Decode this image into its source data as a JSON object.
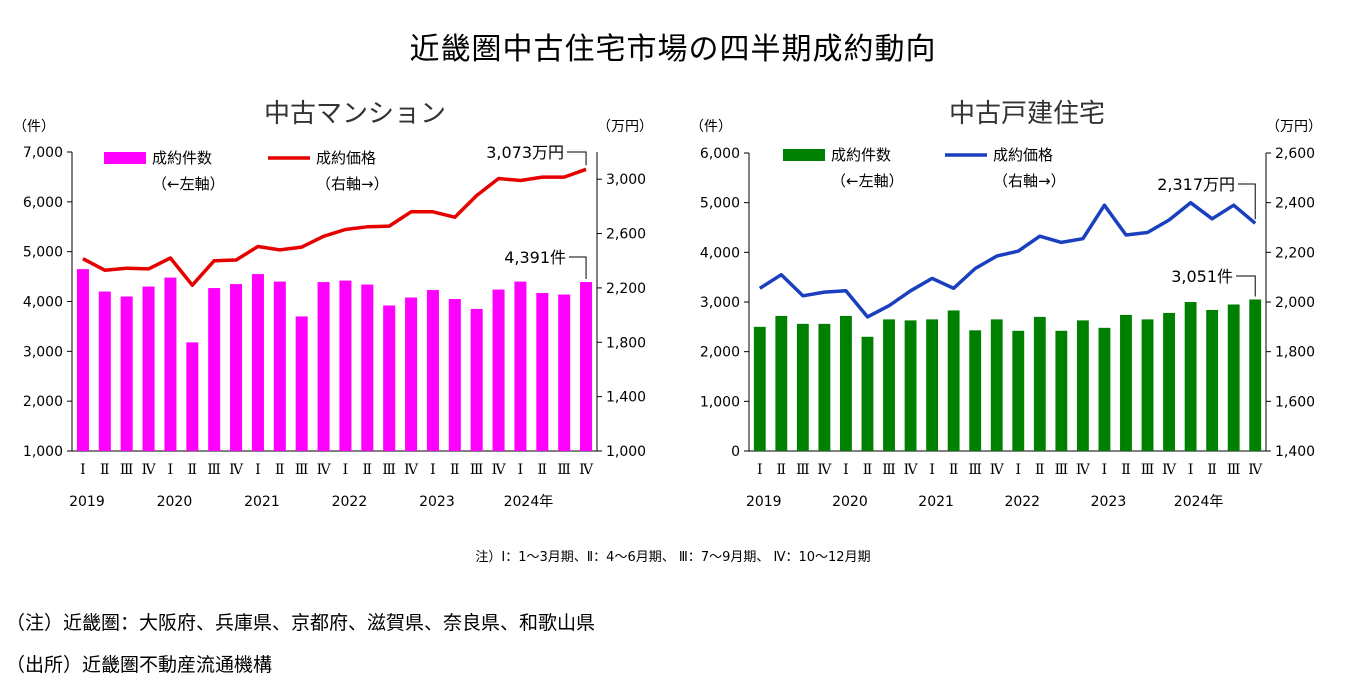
{
  "title": "近畿圏中古住宅市場の四半期成約動向",
  "quarter_note": "注）Ⅰ：1～3月期、Ⅱ：4～6月期、 Ⅲ：7～9月期、 Ⅳ：10～12月期",
  "footnote_area": "（注）近畿圏：大阪府、兵庫県、京都府、滋賀県、奈良県、和歌山県",
  "source": "（出所）近畿圏不動産流通機構",
  "chart_data": [
    {
      "type": "bar+line",
      "title": "中古マンション",
      "left_unit": "（件）",
      "right_unit": "（万円）",
      "left_ylim": [
        1000,
        7000
      ],
      "left_ticks": [
        "1,000",
        "2,000",
        "3,000",
        "4,000",
        "5,000",
        "6,000",
        "7,000"
      ],
      "right_ylim": [
        1000,
        3200
      ],
      "right_ticks": [
        "1,000",
        "1,400",
        "1,800",
        "2,200",
        "2,600",
        "3,000"
      ],
      "right_tick_values": [
        1000,
        1400,
        1800,
        2200,
        2600,
        3000
      ],
      "quarters": [
        "Ⅰ",
        "Ⅱ",
        "Ⅲ",
        "Ⅳ",
        "Ⅰ",
        "Ⅱ",
        "Ⅲ",
        "Ⅳ",
        "Ⅰ",
        "Ⅱ",
        "Ⅲ",
        "Ⅳ",
        "Ⅰ",
        "Ⅱ",
        "Ⅲ",
        "Ⅳ",
        "Ⅰ",
        "Ⅱ",
        "Ⅲ",
        "Ⅳ",
        "Ⅰ",
        "Ⅱ",
        "Ⅲ",
        "Ⅳ"
      ],
      "years": [
        "2019",
        "2020",
        "2021",
        "2022",
        "2023",
        "2024年"
      ],
      "bar_color": "#ff00ff",
      "line_color": "#e60000",
      "series": [
        {
          "name": "成約件数",
          "sub": "（←左軸）",
          "axis": "left",
          "values": [
            4650,
            4200,
            4100,
            4300,
            4480,
            3180,
            4270,
            4350,
            4550,
            4400,
            3700,
            4390,
            4420,
            4340,
            3920,
            4080,
            4230,
            4050,
            3850,
            4240,
            4400,
            4170,
            4140,
            4391
          ]
        },
        {
          "name": "成約価格",
          "sub": "（右軸→）",
          "axis": "right",
          "values": [
            2415,
            2330,
            2345,
            2340,
            2420,
            2220,
            2400,
            2405,
            2505,
            2480,
            2500,
            2580,
            2630,
            2650,
            2655,
            2760,
            2760,
            2720,
            2880,
            3005,
            2990,
            3015,
            3015,
            3073
          ]
        }
      ],
      "annotations": {
        "bar_last": "4,391件",
        "line_last": "3,073万円"
      }
    },
    {
      "type": "bar+line",
      "title": "中古戸建住宅",
      "left_unit": "（件）",
      "right_unit": "（万円）",
      "left_ylim": [
        0,
        6000
      ],
      "left_ticks": [
        "0",
        "1,000",
        "2,000",
        "3,000",
        "4,000",
        "5,000",
        "6,000"
      ],
      "right_ylim": [
        1400,
        2600
      ],
      "right_ticks": [
        "1,400",
        "1,600",
        "1,800",
        "2,000",
        "2,200",
        "2,400",
        "2,600"
      ],
      "right_tick_values": [
        1400,
        1600,
        1800,
        2000,
        2200,
        2400,
        2600
      ],
      "quarters": [
        "Ⅰ",
        "Ⅱ",
        "Ⅲ",
        "Ⅳ",
        "Ⅰ",
        "Ⅱ",
        "Ⅲ",
        "Ⅳ",
        "Ⅰ",
        "Ⅱ",
        "Ⅲ",
        "Ⅳ",
        "Ⅰ",
        "Ⅱ",
        "Ⅲ",
        "Ⅳ",
        "Ⅰ",
        "Ⅱ",
        "Ⅲ",
        "Ⅳ",
        "Ⅰ",
        "Ⅱ",
        "Ⅲ",
        "Ⅳ"
      ],
      "years": [
        "2019",
        "2020",
        "2021",
        "2022",
        "2023",
        "2024年"
      ],
      "bar_color": "#008000",
      "line_color": "#1a3fbf",
      "series": [
        {
          "name": "成約件数",
          "sub": "（←左軸）",
          "axis": "left",
          "values": [
            2500,
            2720,
            2560,
            2560,
            2720,
            2300,
            2650,
            2630,
            2650,
            2830,
            2430,
            2650,
            2420,
            2700,
            2420,
            2630,
            2480,
            2740,
            2650,
            2780,
            3000,
            2840,
            2950,
            3051
          ]
        },
        {
          "name": "成約価格",
          "sub": "（右軸→）",
          "axis": "right",
          "values": [
            2055,
            2110,
            2025,
            2040,
            2045,
            1940,
            1985,
            2045,
            2095,
            2055,
            2135,
            2185,
            2205,
            2265,
            2240,
            2255,
            2390,
            2270,
            2280,
            2330,
            2400,
            2335,
            2390,
            2317
          ]
        }
      ],
      "annotations": {
        "bar_last": "3,051件",
        "line_last": "2,317万円"
      }
    }
  ]
}
